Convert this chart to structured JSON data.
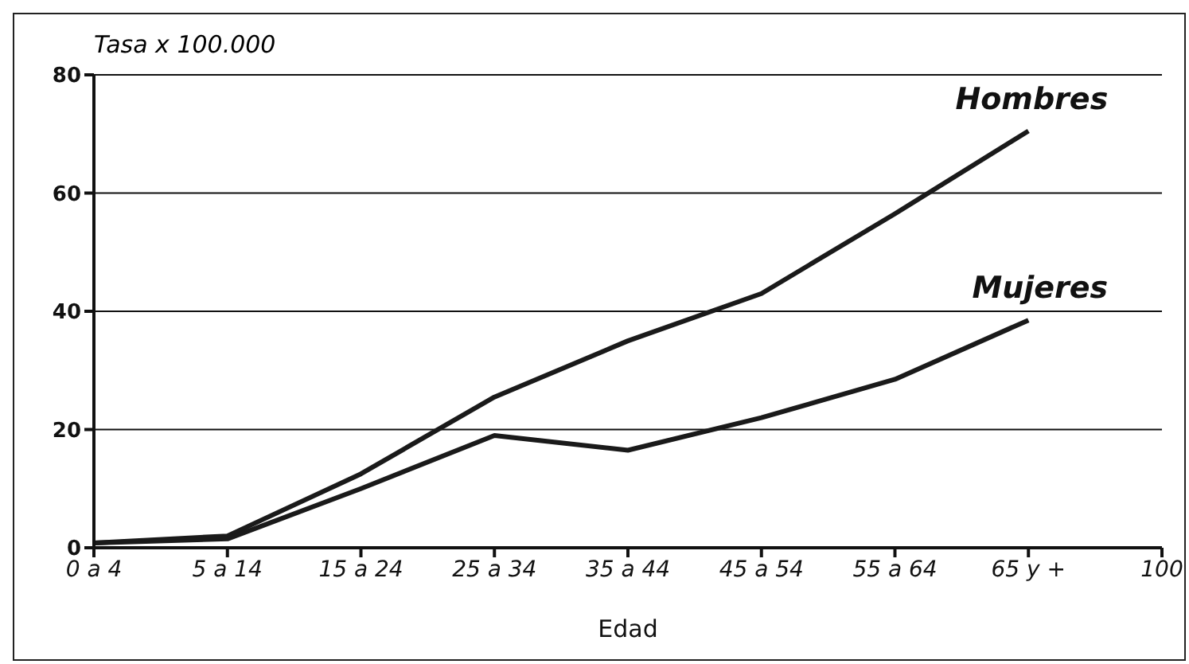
{
  "chart_data": {
    "type": "line",
    "ylabel": "Tasa  x  100.000",
    "xlabel": "Edad",
    "categories": [
      "0 a 4",
      "5 a 14",
      "15 a 24",
      "25 a 34",
      "35 a 44",
      "45 a 54",
      "55 a 64",
      "65 y +",
      "100"
    ],
    "series": [
      {
        "name": "Hombres",
        "color": "#1a1a1a",
        "values": [
          0.8,
          2,
          12.5,
          25.5,
          35,
          43,
          56.5,
          70.5,
          null
        ]
      },
      {
        "name": "Mujeres",
        "color": "#1a1a1a",
        "values": [
          0.8,
          1.5,
          10,
          19,
          16.5,
          22,
          28.5,
          38.5,
          null
        ]
      }
    ],
    "ylim": [
      0,
      80
    ],
    "yticks": [
      0,
      20,
      40,
      60,
      80
    ],
    "grid": "y",
    "legend": false,
    "marker": "none",
    "line_style": "solid"
  }
}
